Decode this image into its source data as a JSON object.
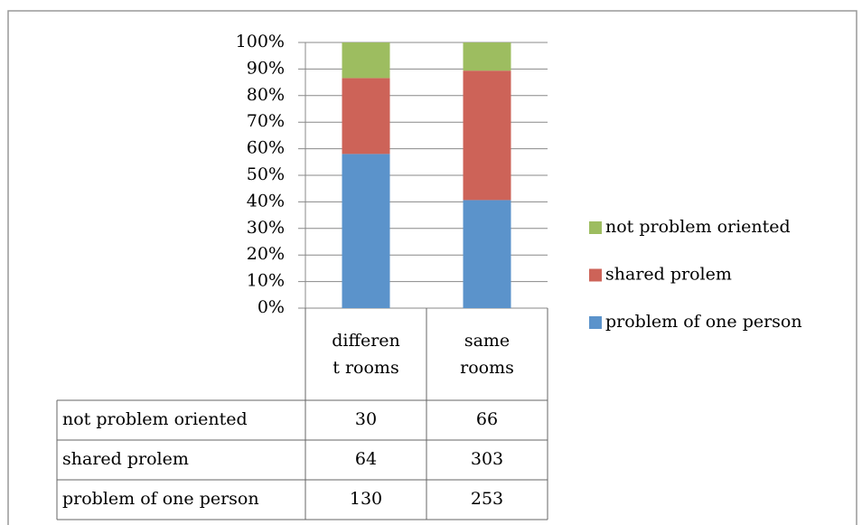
{
  "chart_data": {
    "type": "bar",
    "stacking": "percent",
    "categories": [
      "different rooms",
      "same rooms"
    ],
    "series": [
      {
        "name": "problem of one person",
        "color": "#5b93cb",
        "values": [
          130,
          253
        ]
      },
      {
        "name": "shared prolem",
        "color": "#cd6358",
        "values": [
          64,
          303
        ]
      },
      {
        "name": "not problem oriented",
        "color": "#9dbd60",
        "values": [
          30,
          66
        ]
      }
    ],
    "ylim": [
      0,
      100
    ],
    "yticks": [
      {
        "value": 0,
        "label": "0%"
      },
      {
        "value": 10,
        "label": "10%"
      },
      {
        "value": 20,
        "label": "20%"
      },
      {
        "value": 30,
        "label": "30%"
      },
      {
        "value": 40,
        "label": "40%"
      },
      {
        "value": 50,
        "label": "50%"
      },
      {
        "value": 60,
        "label": "60%"
      },
      {
        "value": 70,
        "label": "70%"
      },
      {
        "value": 80,
        "label": "80%"
      },
      {
        "value": 90,
        "label": "90%"
      },
      {
        "value": 100,
        "label": "100%"
      }
    ],
    "grid": true,
    "legend": "right",
    "data_table": true
  }
}
